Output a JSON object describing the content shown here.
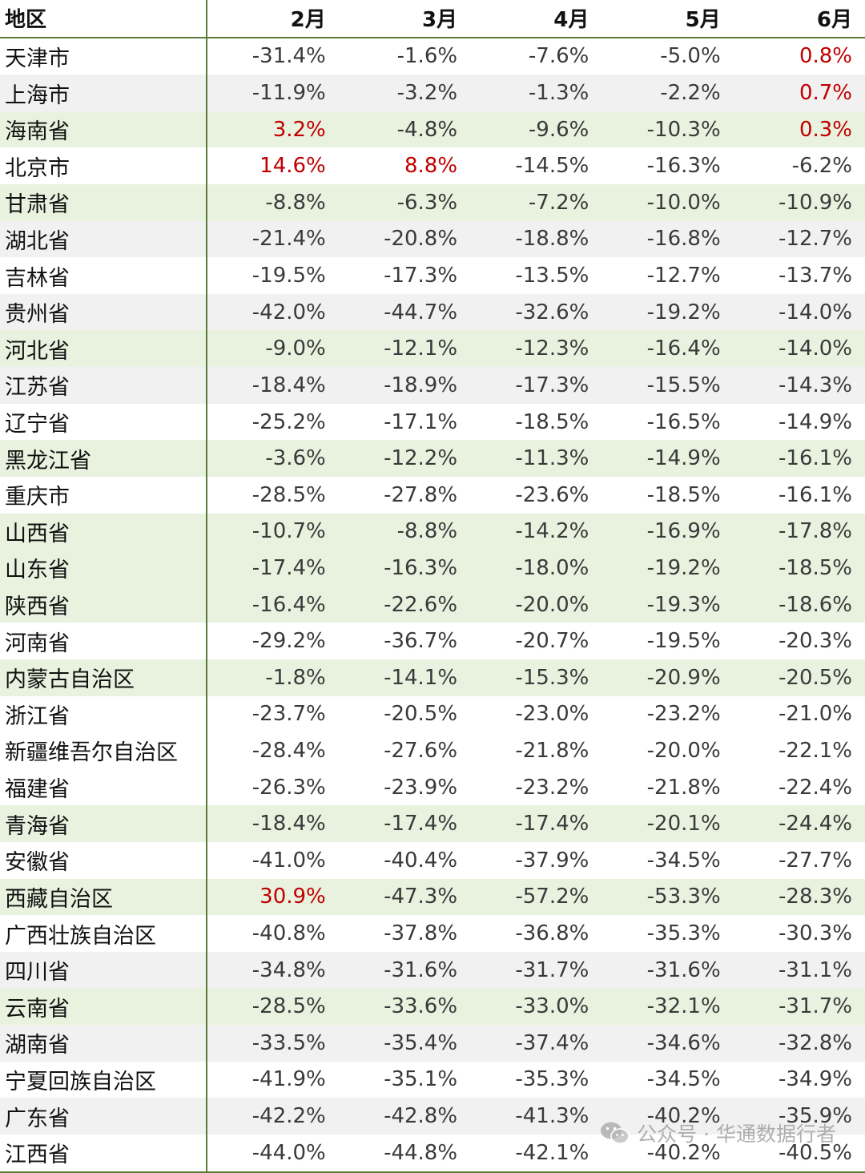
{
  "chart_data": {
    "type": "table",
    "columns": [
      "地区",
      "2月",
      "3月",
      "4月",
      "5月",
      "6月"
    ],
    "rows": [
      {
        "region": "天津市",
        "values": [
          "-31.4%",
          "-1.6%",
          "-7.6%",
          "-5.0%",
          "0.8%"
        ],
        "shade": "white"
      },
      {
        "region": "上海市",
        "values": [
          "-11.9%",
          "-3.2%",
          "-1.3%",
          "-2.2%",
          "0.7%"
        ],
        "shade": "grey"
      },
      {
        "region": "海南省",
        "values": [
          "3.2%",
          "-4.8%",
          "-9.6%",
          "-10.3%",
          "0.3%"
        ],
        "shade": "green"
      },
      {
        "region": "北京市",
        "values": [
          "14.6%",
          "8.8%",
          "-14.5%",
          "-16.3%",
          "-6.2%"
        ],
        "shade": "white"
      },
      {
        "region": "甘肃省",
        "values": [
          "-8.8%",
          "-6.3%",
          "-7.2%",
          "-10.0%",
          "-10.9%"
        ],
        "shade": "green"
      },
      {
        "region": "湖北省",
        "values": [
          "-21.4%",
          "-20.8%",
          "-18.8%",
          "-16.8%",
          "-12.7%"
        ],
        "shade": "grey"
      },
      {
        "region": "吉林省",
        "values": [
          "-19.5%",
          "-17.3%",
          "-13.5%",
          "-12.7%",
          "-13.7%"
        ],
        "shade": "white"
      },
      {
        "region": "贵州省",
        "values": [
          "-42.0%",
          "-44.7%",
          "-32.6%",
          "-19.2%",
          "-14.0%"
        ],
        "shade": "grey"
      },
      {
        "region": "河北省",
        "values": [
          "-9.0%",
          "-12.1%",
          "-12.3%",
          "-16.4%",
          "-14.0%"
        ],
        "shade": "green"
      },
      {
        "region": "江苏省",
        "values": [
          "-18.4%",
          "-18.9%",
          "-17.3%",
          "-15.5%",
          "-14.3%"
        ],
        "shade": "grey"
      },
      {
        "region": "辽宁省",
        "values": [
          "-25.2%",
          "-17.1%",
          "-18.5%",
          "-16.5%",
          "-14.9%"
        ],
        "shade": "white"
      },
      {
        "region": "黑龙江省",
        "values": [
          "-3.6%",
          "-12.2%",
          "-11.3%",
          "-14.9%",
          "-16.1%"
        ],
        "shade": "green"
      },
      {
        "region": "重庆市",
        "values": [
          "-28.5%",
          "-27.8%",
          "-23.6%",
          "-18.5%",
          "-16.1%"
        ],
        "shade": "white"
      },
      {
        "region": "山西省",
        "values": [
          "-10.7%",
          "-8.8%",
          "-14.2%",
          "-16.9%",
          "-17.8%"
        ],
        "shade": "green"
      },
      {
        "region": "山东省",
        "values": [
          "-17.4%",
          "-16.3%",
          "-18.0%",
          "-19.2%",
          "-18.5%"
        ],
        "shade": "green"
      },
      {
        "region": "陕西省",
        "values": [
          "-16.4%",
          "-22.6%",
          "-20.0%",
          "-19.3%",
          "-18.6%"
        ],
        "shade": "green"
      },
      {
        "region": "河南省",
        "values": [
          "-29.2%",
          "-36.7%",
          "-20.7%",
          "-19.5%",
          "-20.3%"
        ],
        "shade": "white"
      },
      {
        "region": "内蒙古自治区",
        "values": [
          "-1.8%",
          "-14.1%",
          "-15.3%",
          "-20.9%",
          "-20.5%"
        ],
        "shade": "green"
      },
      {
        "region": "浙江省",
        "values": [
          "-23.7%",
          "-20.5%",
          "-23.0%",
          "-23.2%",
          "-21.0%"
        ],
        "shade": "white"
      },
      {
        "region": "新疆维吾尔自治区",
        "values": [
          "-28.4%",
          "-27.6%",
          "-21.8%",
          "-20.0%",
          "-22.1%"
        ],
        "shade": "white"
      },
      {
        "region": "福建省",
        "values": [
          "-26.3%",
          "-23.9%",
          "-23.2%",
          "-21.8%",
          "-22.4%"
        ],
        "shade": "white"
      },
      {
        "region": "青海省",
        "values": [
          "-18.4%",
          "-17.4%",
          "-17.4%",
          "-20.1%",
          "-24.4%"
        ],
        "shade": "green"
      },
      {
        "region": "安徽省",
        "values": [
          "-41.0%",
          "-40.4%",
          "-37.9%",
          "-34.5%",
          "-27.7%"
        ],
        "shade": "white"
      },
      {
        "region": "西藏自治区",
        "values": [
          "30.9%",
          "-47.3%",
          "-57.2%",
          "-53.3%",
          "-28.3%"
        ],
        "shade": "green"
      },
      {
        "region": "广西壮族自治区",
        "values": [
          "-40.8%",
          "-37.8%",
          "-36.8%",
          "-35.3%",
          "-30.3%"
        ],
        "shade": "white"
      },
      {
        "region": "四川省",
        "values": [
          "-34.8%",
          "-31.6%",
          "-31.7%",
          "-31.6%",
          "-31.1%"
        ],
        "shade": "grey"
      },
      {
        "region": "云南省",
        "values": [
          "-28.5%",
          "-33.6%",
          "-33.0%",
          "-32.1%",
          "-31.7%"
        ],
        "shade": "green"
      },
      {
        "region": "湖南省",
        "values": [
          "-33.5%",
          "-35.4%",
          "-37.4%",
          "-34.6%",
          "-32.8%"
        ],
        "shade": "grey"
      },
      {
        "region": "宁夏回族自治区",
        "values": [
          "-41.9%",
          "-35.1%",
          "-35.3%",
          "-34.5%",
          "-34.9%"
        ],
        "shade": "white"
      },
      {
        "region": "广东省",
        "values": [
          "-42.2%",
          "-42.8%",
          "-41.3%",
          "-40.2%",
          "-35.9%"
        ],
        "shade": "grey"
      },
      {
        "region": "江西省",
        "values": [
          "-44.0%",
          "-44.8%",
          "-42.1%",
          "-40.2%",
          "-40.5%"
        ],
        "shade": "white"
      }
    ],
    "colors": {
      "positive": "#c00000",
      "negative": "#3a3a3a",
      "header_rule": "#5d7a3a",
      "row_green": "#e9f2df",
      "row_grey": "#f1f1f1"
    }
  },
  "watermark": {
    "text": "公众号 · 华通数据行者",
    "icon": "wechat-icon"
  }
}
